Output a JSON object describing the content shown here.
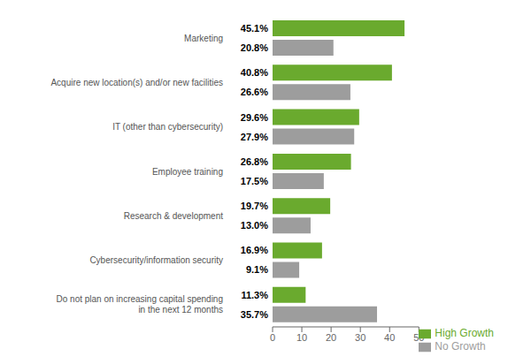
{
  "chart_data": {
    "type": "bar",
    "orientation": "horizontal",
    "categories": [
      "Marketing",
      "Acquire new location(s) and/or new facilities",
      "IT (other than cybersecurity)",
      "Employee training",
      "Research & development",
      "Cybersecurity/information security",
      "Do not plan on increasing capital spending\nin the next 12 months"
    ],
    "series": [
      {
        "name": "High Growth",
        "color": "#6aaa2e",
        "values": [
          45.1,
          40.8,
          29.6,
          26.8,
          19.7,
          16.9,
          11.3
        ],
        "value_labels": [
          "45.1%",
          "40.8%",
          "29.6%",
          "26.8%",
          "19.7%",
          "16.9%",
          "11.3%"
        ]
      },
      {
        "name": "No Growth",
        "color": "#9d9d9d",
        "values": [
          20.8,
          26.6,
          27.9,
          17.5,
          13.0,
          9.1,
          35.7
        ],
        "value_labels": [
          "20.8%",
          "26.6%",
          "27.9%",
          "17.5%",
          "13.0%",
          "9.1%",
          "35.7%"
        ]
      }
    ],
    "xlim": [
      0,
      50
    ],
    "xticks": [
      0,
      10,
      20,
      30,
      40,
      50
    ],
    "legend": "lower right",
    "grid": false,
    "data_labels": true
  }
}
